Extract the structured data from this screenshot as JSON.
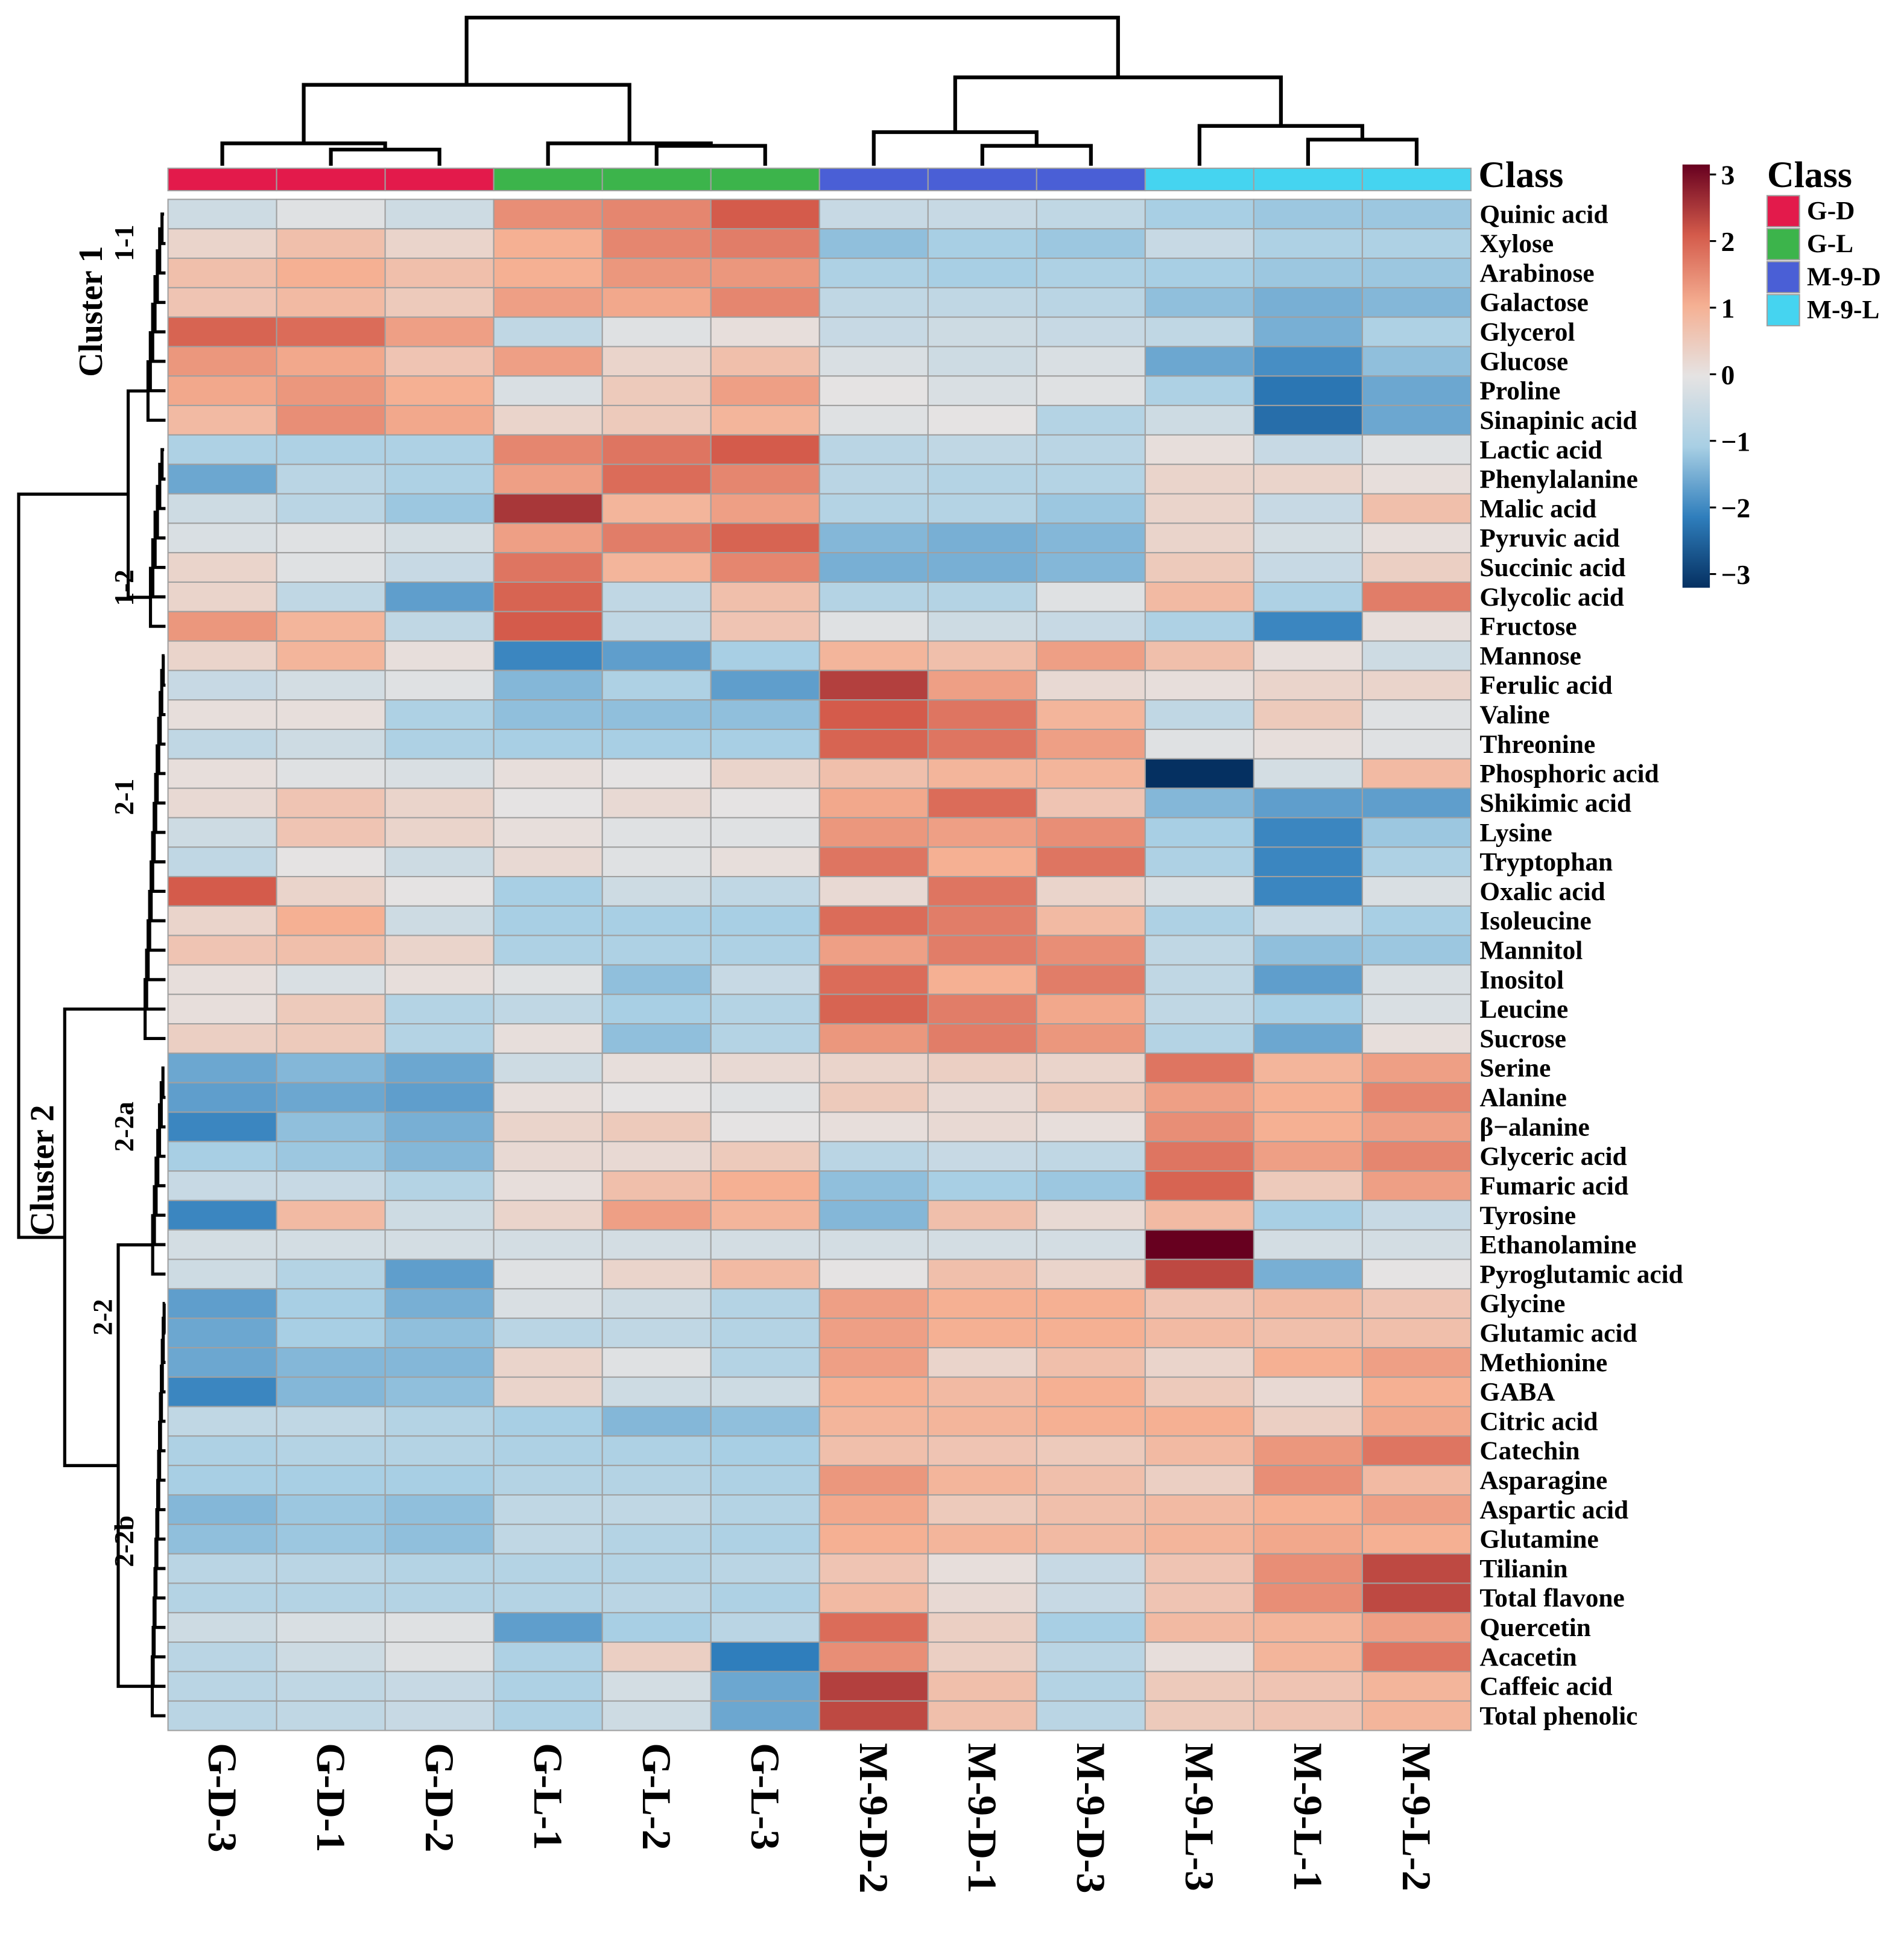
{
  "chart_data": {
    "type": "heatmap",
    "title": "",
    "columns": [
      "G-D-3",
      "G-D-1",
      "G-D-2",
      "G-L-1",
      "G-L-2",
      "G-L-3",
      "M-9-D-2",
      "M-9-D-1",
      "M-9-D-3",
      "M-9-L-3",
      "M-9-L-1",
      "M-9-L-2"
    ],
    "column_classes": [
      "G-D",
      "G-D",
      "G-D",
      "G-L",
      "G-L",
      "G-L",
      "M-9-D",
      "M-9-D",
      "M-9-D",
      "M-9-L",
      "M-9-L",
      "M-9-L"
    ],
    "rows": [
      "Quinic acid",
      "Xylose",
      "Arabinose",
      "Galactose",
      "Glycerol",
      "Glucose",
      "Proline",
      "Sinapinic acid",
      "Lactic acid",
      "Phenylalanine",
      "Malic acid",
      "Pyruvic acid",
      "Succinic acid",
      "Glycolic acid",
      "Fructose",
      "Mannose",
      "Ferulic acid",
      "Valine",
      "Threonine",
      "Phosphoric acid",
      "Shikimic acid",
      "Lysine",
      "Tryptophan",
      "Oxalic acid",
      "Isoleucine",
      "Mannitol",
      "Inositol",
      "Leucine",
      "Sucrose",
      "Serine",
      "Alanine",
      "β−alanine",
      "Glyceric acid",
      "Fumaric acid",
      "Tyrosine",
      "Ethanolamine",
      "Pyroglutamic acid",
      "Glycine",
      "Glutamic acid",
      "Methionine",
      "GABA",
      "Citric acid",
      "Catechin",
      "Asparagine",
      "Aspartic acid",
      "Glutamine",
      "Tilianin",
      "Total flavone",
      "Quercetin",
      "Acacetin",
      "Caffeic acid",
      "Total phenolic"
    ],
    "values": [
      [
        -0.4,
        -0.1,
        -0.4,
        1.4,
        1.5,
        2.0,
        -0.5,
        -0.5,
        -0.6,
        -1.0,
        -1.1,
        -1.1
      ],
      [
        0.3,
        0.7,
        0.3,
        1.0,
        1.5,
        1.6,
        -1.2,
        -1.0,
        -1.1,
        -0.5,
        -0.9,
        -0.9
      ],
      [
        0.7,
        1.0,
        0.7,
        1.0,
        1.3,
        1.3,
        -0.9,
        -1.0,
        -0.9,
        -1.0,
        -1.1,
        -1.1
      ],
      [
        0.6,
        0.8,
        0.5,
        1.2,
        1.1,
        1.5,
        -0.6,
        -0.6,
        -0.7,
        -1.2,
        -1.4,
        -1.3
      ],
      [
        1.9,
        1.8,
        1.2,
        -0.6,
        -0.1,
        0.1,
        -0.5,
        -0.4,
        -0.5,
        -0.6,
        -1.4,
        -0.9
      ],
      [
        1.3,
        1.1,
        0.6,
        1.2,
        0.3,
        0.7,
        -0.2,
        -0.4,
        -0.2,
        -1.5,
        -1.8,
        -1.2
      ],
      [
        1.1,
        1.3,
        1.0,
        -0.2,
        0.5,
        1.2,
        0.0,
        -0.2,
        -0.1,
        -0.9,
        -2.1,
        -1.5
      ],
      [
        0.8,
        1.4,
        1.1,
        0.3,
        0.5,
        0.9,
        -0.1,
        0.0,
        -0.8,
        -0.4,
        -2.2,
        -1.5
      ],
      [
        -0.9,
        -0.9,
        -0.9,
        1.5,
        1.7,
        2.0,
        -0.7,
        -0.6,
        -0.7,
        0.1,
        -0.5,
        -0.1
      ],
      [
        -1.5,
        -0.7,
        -0.9,
        1.2,
        1.8,
        1.5,
        -0.7,
        -0.8,
        -0.8,
        0.3,
        0.3,
        0.1
      ],
      [
        -0.4,
        -0.7,
        -1.1,
        2.4,
        0.9,
        1.2,
        -0.8,
        -0.8,
        -1.1,
        0.3,
        -0.5,
        0.7
      ],
      [
        -0.2,
        -0.1,
        -0.3,
        1.2,
        1.6,
        1.9,
        -1.3,
        -1.4,
        -1.3,
        0.3,
        -0.3,
        0.1
      ],
      [
        0.3,
        -0.1,
        -0.5,
        1.7,
        0.9,
        1.5,
        -1.4,
        -1.4,
        -1.3,
        0.5,
        -0.5,
        0.4
      ],
      [
        0.3,
        -0.6,
        -1.6,
        1.9,
        -0.6,
        0.7,
        -0.8,
        -0.8,
        -0.1,
        0.8,
        -0.9,
        1.6
      ],
      [
        1.3,
        0.9,
        -0.6,
        2.0,
        -0.6,
        0.6,
        -0.1,
        -0.4,
        -0.5,
        -0.9,
        -1.9,
        0.1
      ],
      [
        0.3,
        0.9,
        0.1,
        -1.9,
        -1.6,
        -1.0,
        0.9,
        0.7,
        1.2,
        0.7,
        0.1,
        -0.4
      ],
      [
        -0.5,
        -0.3,
        -0.1,
        -1.3,
        -0.9,
        -1.6,
        2.3,
        1.2,
        0.2,
        0.1,
        0.3,
        0.3
      ],
      [
        0.1,
        0.1,
        -0.9,
        -1.2,
        -1.2,
        -1.2,
        2.0,
        1.7,
        0.9,
        -0.6,
        0.5,
        -0.1
      ],
      [
        -0.6,
        -0.4,
        -0.9,
        -1.0,
        -1.0,
        -1.0,
        1.9,
        1.7,
        1.2,
        -0.1,
        0.1,
        -0.1
      ],
      [
        0.1,
        -0.1,
        -0.2,
        0.1,
        0.0,
        0.3,
        0.7,
        0.9,
        0.9,
        -3.0,
        -0.3,
        0.8
      ],
      [
        0.2,
        0.6,
        0.3,
        0.0,
        0.2,
        0.0,
        1.1,
        1.8,
        0.6,
        -1.3,
        -1.6,
        -1.6
      ],
      [
        -0.4,
        0.6,
        0.3,
        0.1,
        -0.1,
        -0.1,
        1.3,
        1.2,
        1.4,
        -1.0,
        -1.9,
        -1.1
      ],
      [
        -0.6,
        0.0,
        -0.4,
        0.2,
        -0.1,
        0.1,
        1.7,
        1.0,
        1.7,
        -0.9,
        -1.9,
        -0.9
      ],
      [
        2.0,
        0.3,
        0.0,
        -1.0,
        -0.4,
        -0.6,
        0.2,
        1.7,
        0.3,
        -0.2,
        -1.9,
        -0.2
      ],
      [
        0.3,
        1.0,
        -0.4,
        -1.0,
        -1.0,
        -1.0,
        1.8,
        1.6,
        0.8,
        -0.9,
        -0.5,
        -1.0
      ],
      [
        0.6,
        0.7,
        0.3,
        -0.9,
        -0.9,
        -0.9,
        1.2,
        1.6,
        1.4,
        -0.6,
        -1.2,
        -1.1
      ],
      [
        0.1,
        -0.2,
        0.1,
        -0.1,
        -1.2,
        -0.5,
        1.8,
        1.0,
        1.6,
        -0.6,
        -1.6,
        -0.2
      ],
      [
        0.1,
        0.5,
        -0.8,
        -0.6,
        -1.0,
        -0.8,
        1.9,
        1.6,
        1.1,
        -0.6,
        -1.0,
        -0.2
      ],
      [
        0.4,
        0.5,
        -0.8,
        0.1,
        -1.2,
        -0.8,
        1.3,
        1.6,
        1.3,
        -0.8,
        -1.5,
        0.1
      ],
      [
        -1.5,
        -1.3,
        -1.5,
        -0.4,
        0.1,
        0.2,
        0.3,
        0.4,
        0.3,
        1.7,
        0.9,
        1.2
      ],
      [
        -1.6,
        -1.5,
        -1.6,
        0.1,
        0.0,
        -0.1,
        0.5,
        0.2,
        0.5,
        1.2,
        1.0,
        1.5
      ],
      [
        -1.9,
        -1.2,
        -1.4,
        0.3,
        0.5,
        0.0,
        0.1,
        0.2,
        0.1,
        1.4,
        1.0,
        1.2
      ],
      [
        -1.0,
        -1.1,
        -1.3,
        0.2,
        0.2,
        0.5,
        -0.7,
        -0.5,
        -0.6,
        1.7,
        1.2,
        1.5
      ],
      [
        -0.5,
        -0.5,
        -0.8,
        0.1,
        0.7,
        1.0,
        -1.2,
        -1.0,
        -1.1,
        1.9,
        0.5,
        1.2
      ],
      [
        -1.9,
        0.8,
        -0.4,
        0.3,
        1.2,
        0.9,
        -1.3,
        0.7,
        0.2,
        0.8,
        -1.0,
        -0.5
      ],
      [
        -0.3,
        -0.3,
        -0.3,
        -0.3,
        -0.3,
        -0.3,
        -0.3,
        -0.3,
        -0.3,
        3.0,
        -0.3,
        -0.3
      ],
      [
        -0.4,
        -0.8,
        -1.6,
        -0.1,
        0.3,
        0.8,
        0.0,
        0.7,
        0.3,
        2.2,
        -1.4,
        0.0
      ],
      [
        -1.6,
        -1.0,
        -1.4,
        -0.2,
        -0.4,
        -0.8,
        1.2,
        1.0,
        1.0,
        0.6,
        0.8,
        0.6
      ],
      [
        -1.5,
        -1.0,
        -1.2,
        -0.7,
        -0.6,
        -0.8,
        1.2,
        1.0,
        1.0,
        0.8,
        0.7,
        0.7
      ],
      [
        -1.5,
        -1.3,
        -1.3,
        0.3,
        -0.1,
        -0.8,
        1.2,
        0.3,
        0.7,
        0.3,
        1.0,
        1.2
      ],
      [
        -1.9,
        -1.3,
        -1.2,
        0.3,
        -0.4,
        -0.4,
        1.0,
        0.8,
        1.0,
        0.5,
        0.2,
        1.0
      ],
      [
        -0.6,
        -0.6,
        -0.8,
        -1.0,
        -1.3,
        -1.2,
        0.9,
        0.9,
        1.0,
        1.0,
        0.4,
        1.1
      ],
      [
        -0.9,
        -0.8,
        -0.8,
        -0.9,
        -0.9,
        -1.0,
        0.7,
        0.6,
        0.5,
        0.8,
        1.3,
        1.7
      ],
      [
        -1.0,
        -1.0,
        -1.0,
        -0.8,
        -0.8,
        -0.9,
        1.3,
        0.9,
        0.7,
        0.4,
        1.4,
        0.8
      ],
      [
        -1.3,
        -1.1,
        -1.2,
        -0.6,
        -0.6,
        -0.8,
        1.1,
        0.5,
        0.7,
        0.8,
        1.0,
        1.2
      ],
      [
        -1.2,
        -1.1,
        -1.2,
        -0.6,
        -0.8,
        -0.9,
        1.0,
        0.9,
        0.8,
        0.9,
        1.1,
        1.0
      ],
      [
        -0.7,
        -0.7,
        -0.8,
        -0.8,
        -0.8,
        -0.7,
        0.6,
        0.1,
        -0.5,
        0.6,
        1.4,
        2.2
      ],
      [
        -0.8,
        -0.8,
        -0.8,
        -0.8,
        -0.7,
        -0.9,
        0.8,
        0.2,
        -0.5,
        0.6,
        1.4,
        2.2
      ],
      [
        -0.4,
        -0.2,
        -0.1,
        -1.6,
        -1.0,
        -0.7,
        1.8,
        0.4,
        -1.0,
        0.8,
        0.9,
        1.2
      ],
      [
        -0.7,
        -0.4,
        -0.1,
        -0.9,
        0.4,
        -2.0,
        1.4,
        0.4,
        -0.7,
        0.1,
        0.9,
        1.7
      ],
      [
        -0.7,
        -0.6,
        -0.5,
        -0.9,
        -0.3,
        -1.5,
        2.3,
        0.7,
        -0.8,
        0.5,
        0.6,
        0.9
      ],
      [
        -0.7,
        -0.6,
        -0.5,
        -0.9,
        -0.4,
        -1.5,
        2.2,
        0.7,
        -0.7,
        0.5,
        0.6,
        0.9
      ]
    ],
    "color_scale": {
      "range": [
        -3,
        3
      ],
      "ticks": [
        "3",
        "2",
        "1",
        "0",
        "−1",
        "−2",
        "−3"
      ],
      "stops": {
        "-3": "#053061",
        "-2": "#2f7ebc",
        "-1": "#a8cfe4",
        "0": "#e5e3e3",
        "1": "#f5b093",
        "2": "#d45b4b",
        "3": "#67001f"
      }
    },
    "class_annotation_title": "Class",
    "legend": {
      "title": "Class",
      "items": [
        {
          "label": "G-D",
          "color": "#e31a4b"
        },
        {
          "label": "G-L",
          "color": "#3cb44b"
        },
        {
          "label": "M-9-D",
          "color": "#4a5fd6"
        },
        {
          "label": "M-9-L",
          "color": "#45d4f0"
        }
      ]
    },
    "row_clusters": {
      "cluster1": "Cluster 1",
      "cluster2": "Cluster 2",
      "c11": "1-1",
      "c12": "1-2",
      "c21": "2-1",
      "c22": "2-2",
      "c22a": "2-2a",
      "c22b": "2-2b"
    }
  }
}
